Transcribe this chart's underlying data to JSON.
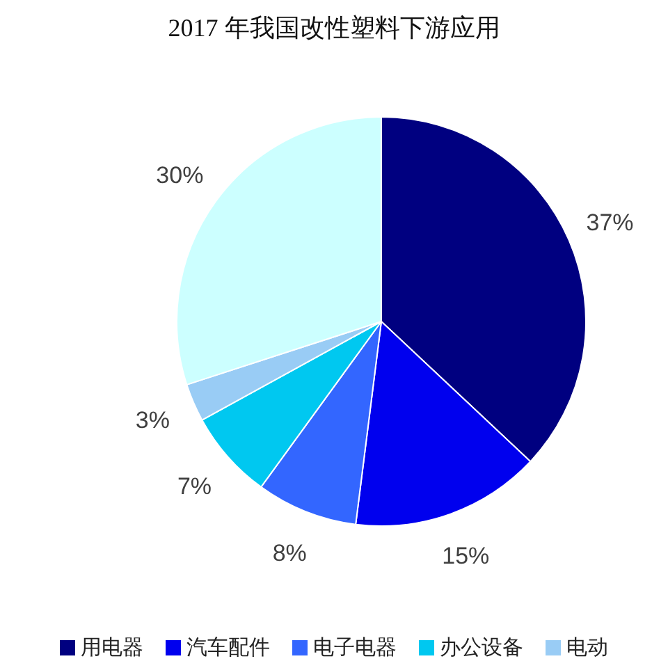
{
  "chart_data": {
    "type": "pie",
    "title": "2017 年我国改性塑料下游应用",
    "categories": [
      "用电器",
      "汽车配件",
      "电子电器",
      "办公设备",
      "电动",
      null
    ],
    "values": [
      37,
      15,
      8,
      7,
      3,
      30
    ],
    "value_labels": [
      "37%",
      "15%",
      "8%",
      "7%",
      "3%",
      "30%"
    ],
    "colors": [
      "#000080",
      "#0000ee",
      "#3366ff",
      "#00c8f0",
      "#99ccf5",
      "#ccffff"
    ],
    "legend": "bottom"
  }
}
